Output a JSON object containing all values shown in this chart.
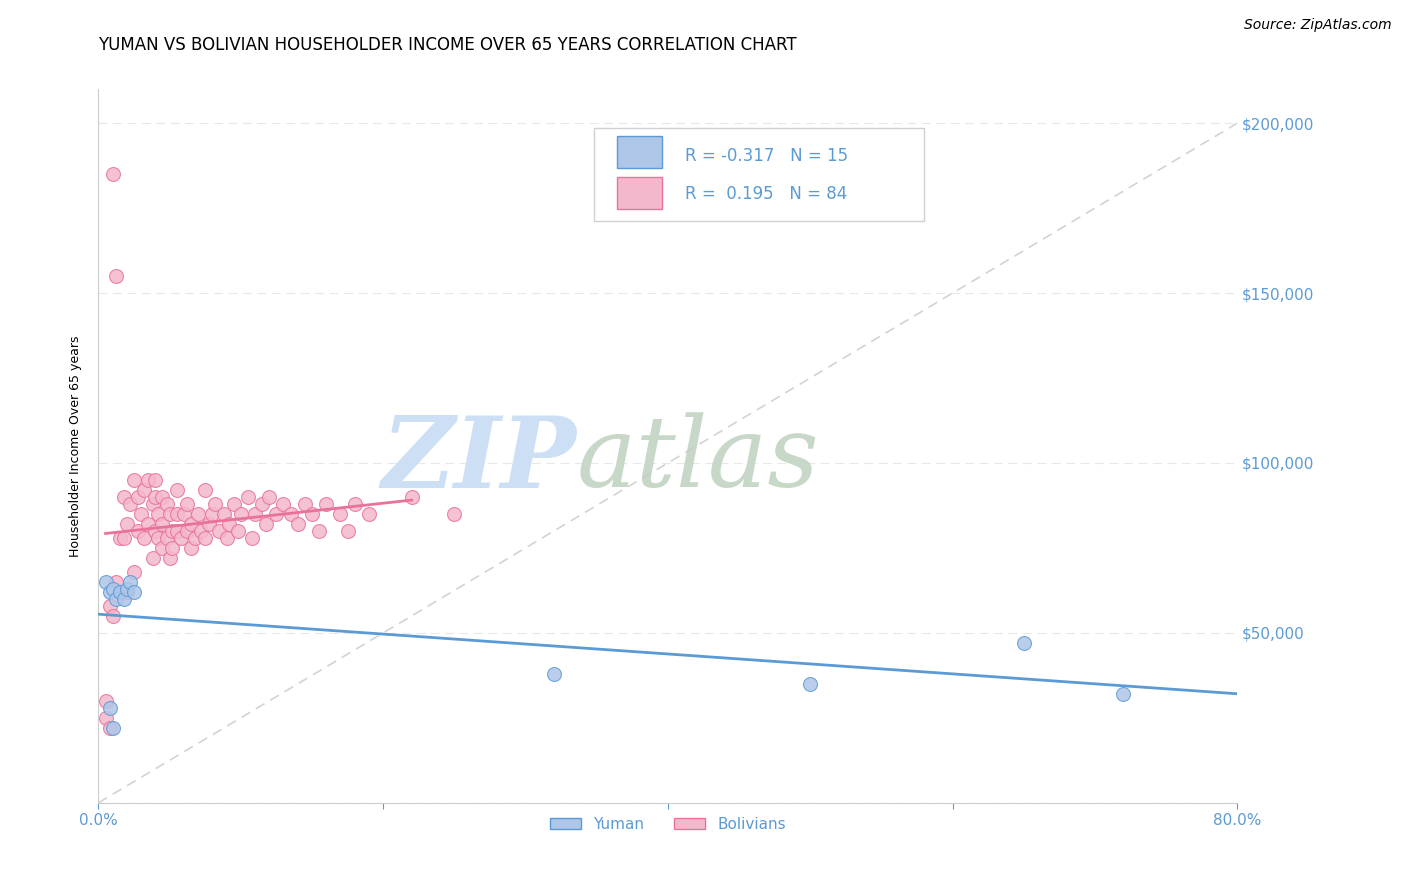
{
  "title": "YUMAN VS BOLIVIAN HOUSEHOLDER INCOME OVER 65 YEARS CORRELATION CHART",
  "source": "Source: ZipAtlas.com",
  "ylabel": "Householder Income Over 65 years",
  "yuman_R": -0.317,
  "yuman_N": 15,
  "bolivian_R": 0.195,
  "bolivian_N": 84,
  "yuman_color": "#aec6e8",
  "bolivian_color": "#f4b8cc",
  "yuman_edge_color": "#5b9bd5",
  "bolivian_edge_color": "#e8729a",
  "yuman_line_color": "#5b9bd5",
  "bolivian_line_color": "#e8729a",
  "diagonal_color": "#c8c8c8",
  "axis_label_color": "#5b9bd5",
  "background_color": "#ffffff",
  "watermark_zip_color": "#cddff5",
  "watermark_atlas_color": "#c8d8c8",
  "yuman_scatter_x": [
    0.005,
    0.008,
    0.01,
    0.012,
    0.015,
    0.018,
    0.02,
    0.022,
    0.025,
    0.32,
    0.5,
    0.65,
    0.72,
    0.008,
    0.01
  ],
  "yuman_scatter_y": [
    65000,
    62000,
    63000,
    60000,
    62000,
    60000,
    63000,
    65000,
    62000,
    38000,
    35000,
    47000,
    32000,
    28000,
    22000
  ],
  "bolivian_scatter_x": [
    0.005,
    0.008,
    0.01,
    0.012,
    0.015,
    0.018,
    0.018,
    0.02,
    0.022,
    0.025,
    0.028,
    0.028,
    0.03,
    0.032,
    0.032,
    0.035,
    0.035,
    0.038,
    0.038,
    0.04,
    0.04,
    0.04,
    0.042,
    0.042,
    0.045,
    0.045,
    0.045,
    0.048,
    0.048,
    0.05,
    0.05,
    0.052,
    0.052,
    0.055,
    0.055,
    0.055,
    0.058,
    0.06,
    0.062,
    0.062,
    0.065,
    0.065,
    0.068,
    0.07,
    0.072,
    0.075,
    0.075,
    0.078,
    0.08,
    0.082,
    0.085,
    0.088,
    0.09,
    0.092,
    0.095,
    0.098,
    0.1,
    0.105,
    0.108,
    0.11,
    0.115,
    0.118,
    0.12,
    0.125,
    0.13,
    0.135,
    0.14,
    0.145,
    0.15,
    0.155,
    0.16,
    0.17,
    0.175,
    0.18,
    0.19,
    0.02,
    0.025,
    0.008,
    0.01,
    0.012,
    0.015,
    0.005,
    0.22,
    0.25
  ],
  "bolivian_scatter_y": [
    25000,
    22000,
    185000,
    155000,
    78000,
    90000,
    78000,
    82000,
    88000,
    95000,
    80000,
    90000,
    85000,
    92000,
    78000,
    95000,
    82000,
    88000,
    72000,
    90000,
    80000,
    95000,
    85000,
    78000,
    90000,
    82000,
    75000,
    88000,
    78000,
    72000,
    85000,
    80000,
    75000,
    85000,
    80000,
    92000,
    78000,
    85000,
    80000,
    88000,
    82000,
    75000,
    78000,
    85000,
    80000,
    92000,
    78000,
    82000,
    85000,
    88000,
    80000,
    85000,
    78000,
    82000,
    88000,
    80000,
    85000,
    90000,
    78000,
    85000,
    88000,
    82000,
    90000,
    85000,
    88000,
    85000,
    82000,
    88000,
    85000,
    80000,
    88000,
    85000,
    80000,
    88000,
    85000,
    62000,
    68000,
    58000,
    55000,
    65000,
    62000,
    30000,
    90000,
    85000
  ],
  "xlim": [
    0.0,
    0.8
  ],
  "ylim": [
    0,
    210000
  ],
  "yticks": [
    0,
    50000,
    100000,
    150000,
    200000
  ],
  "xtick_positions": [
    0.0,
    0.2,
    0.4,
    0.6,
    0.8
  ],
  "xtick_labels": [
    "0.0%",
    "",
    "",
    "",
    "80.0%"
  ],
  "grid_color": "#e8e8e8",
  "title_fontsize": 12,
  "axis_label_fontsize": 9,
  "tick_fontsize": 11,
  "source_fontsize": 10,
  "marker_size": 100
}
